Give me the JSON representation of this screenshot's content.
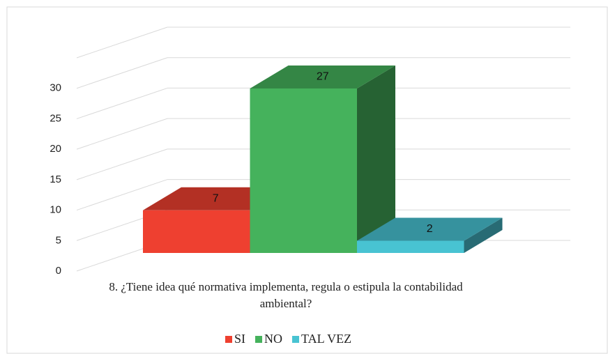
{
  "chart_data": {
    "type": "bar3d",
    "categories": [
      "8. ¿Tiene idea qué normativa implementa, regula o estipula la contabilidad ambiental?"
    ],
    "series": [
      {
        "name": "SI",
        "color": "#ee4030",
        "values": [
          7
        ]
      },
      {
        "name": "NO",
        "color": "#45b25c",
        "values": [
          27
        ]
      },
      {
        "name": "TAL VEZ",
        "color": "#48c3d2",
        "values": [
          2
        ]
      }
    ],
    "ylim": [
      0,
      35
    ],
    "yticks": [
      0,
      5,
      10,
      15,
      20,
      25,
      30
    ],
    "grid": true,
    "legend": "bottom"
  }
}
